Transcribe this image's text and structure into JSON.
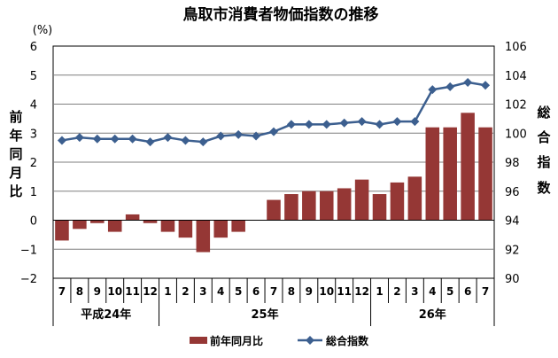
{
  "chart_data": {
    "type": "bar",
    "title": "鳥取市消費者物価指数の推移",
    "left_axis": {
      "unit": "(%)",
      "label_chars": [
        "前",
        "年",
        "同",
        "月",
        "比"
      ],
      "ylim": [
        -2,
        6
      ],
      "ticks": [
        "-2",
        "-1",
        "0",
        "1",
        "2",
        "3",
        "4",
        "5",
        "6"
      ]
    },
    "right_axis": {
      "label_chars": [
        "総",
        "合",
        "指",
        "数"
      ],
      "ylim": [
        90,
        106
      ],
      "ticks": [
        "90",
        "92",
        "94",
        "96",
        "98",
        "100",
        "102",
        "104",
        "106"
      ]
    },
    "categories": [
      "7",
      "8",
      "9",
      "10",
      "11",
      "12",
      "1",
      "2",
      "3",
      "4",
      "5",
      "6",
      "7",
      "8",
      "9",
      "10",
      "11",
      "12",
      "1",
      "2",
      "3",
      "4",
      "5",
      "6",
      "7"
    ],
    "year_groups": [
      {
        "label": "平成24年",
        "count": 6
      },
      {
        "label": "25年",
        "count": 12
      },
      {
        "label": "26年",
        "count": 7
      }
    ],
    "series": [
      {
        "name": "前年同月比",
        "type": "bar",
        "axis": "left",
        "color": "#953735",
        "values": [
          -0.7,
          -0.3,
          -0.1,
          -0.4,
          0.2,
          -0.1,
          -0.4,
          -0.6,
          -1.1,
          -0.6,
          -0.4,
          0.0,
          0.7,
          0.9,
          1.0,
          1.0,
          1.1,
          1.4,
          0.9,
          1.3,
          1.5,
          3.2,
          3.2,
          3.7,
          3.2
        ]
      },
      {
        "name": "総合指数",
        "type": "line",
        "axis": "right",
        "color": "#3c5f8f",
        "values": [
          99.5,
          99.7,
          99.6,
          99.6,
          99.6,
          99.4,
          99.7,
          99.5,
          99.4,
          99.8,
          99.9,
          99.8,
          100.1,
          100.6,
          100.6,
          100.6,
          100.7,
          100.8,
          100.6,
          100.8,
          100.8,
          103.0,
          103.2,
          103.5,
          103.3
        ]
      }
    ],
    "grid": true,
    "legend_position": "bottom"
  }
}
